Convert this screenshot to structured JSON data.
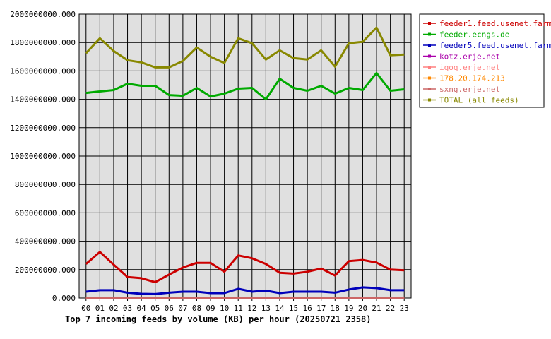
{
  "chart_data": {
    "type": "line",
    "title": "Top 7 incoming feeds by volume (KB) per hour (20250721 2358)",
    "categories": [
      "00",
      "01",
      "02",
      "03",
      "04",
      "05",
      "06",
      "07",
      "08",
      "09",
      "10",
      "11",
      "12",
      "13",
      "14",
      "15",
      "16",
      "17",
      "18",
      "19",
      "20",
      "21",
      "22",
      "23"
    ],
    "yticks": [
      "0.000",
      "200000000.000",
      "400000000.000",
      "600000000.000",
      "800000000.000",
      "1000000000.000",
      "1200000000.000",
      "1400000000.000",
      "1600000000.000",
      "1800000000.000",
      "2000000000.000"
    ],
    "ylim": [
      0,
      2000000000
    ],
    "grid": true,
    "legend_position": "top-right",
    "series": [
      {
        "name": "feeder1.feed.usenet.farm",
        "color": "#cc0000",
        "values": [
          240000000,
          325000000,
          235000000,
          148000000,
          140000000,
          112000000,
          165000000,
          215000000,
          248000000,
          248000000,
          185000000,
          300000000,
          280000000,
          240000000,
          178000000,
          172000000,
          185000000,
          208000000,
          158000000,
          260000000,
          268000000,
          250000000,
          200000000,
          195000000
        ]
      },
      {
        "name": "feeder.ecngs.de",
        "color": "#00aa00",
        "values": [
          1445000000,
          1455000000,
          1465000000,
          1510000000,
          1495000000,
          1495000000,
          1430000000,
          1425000000,
          1480000000,
          1420000000,
          1440000000,
          1475000000,
          1480000000,
          1400000000,
          1545000000,
          1480000000,
          1460000000,
          1495000000,
          1440000000,
          1480000000,
          1465000000,
          1585000000,
          1460000000,
          1470000000
        ]
      },
      {
        "name": "feeder5.feed.usenet.farm",
        "color": "#0000bb",
        "values": [
          45000000,
          55000000,
          55000000,
          38000000,
          30000000,
          28000000,
          38000000,
          45000000,
          45000000,
          35000000,
          35000000,
          65000000,
          45000000,
          52000000,
          35000000,
          45000000,
          45000000,
          45000000,
          38000000,
          60000000,
          75000000,
          70000000,
          55000000,
          55000000
        ]
      },
      {
        "name": "kotz.erje.net",
        "color": "#aa00aa",
        "values": [
          0,
          0,
          0,
          0,
          0,
          0,
          0,
          0,
          0,
          0,
          0,
          0,
          0,
          0,
          0,
          0,
          0,
          0,
          0,
          0,
          0,
          0,
          0,
          0
        ]
      },
      {
        "name": "iqoq.erje.net",
        "color": "#ff8080",
        "values": [
          0,
          0,
          0,
          0,
          0,
          0,
          0,
          0,
          0,
          0,
          0,
          0,
          0,
          0,
          0,
          0,
          0,
          0,
          0,
          0,
          0,
          0,
          0,
          0
        ]
      },
      {
        "name": "178.20.174.213",
        "color": "#ff8800",
        "values": [
          0,
          0,
          0,
          0,
          0,
          0,
          0,
          0,
          0,
          0,
          0,
          0,
          0,
          0,
          0,
          0,
          0,
          0,
          0,
          0,
          0,
          0,
          0,
          0
        ]
      },
      {
        "name": "sxng.erje.net",
        "color": "#cc6666",
        "values": [
          2000000,
          2000000,
          2000000,
          2000000,
          2000000,
          2000000,
          2000000,
          2000000,
          2000000,
          2000000,
          2000000,
          2000000,
          2000000,
          2000000,
          2000000,
          2000000,
          2000000,
          2000000,
          2000000,
          2000000,
          2000000,
          2000000,
          2000000,
          2000000
        ]
      },
      {
        "name": "TOTAL (all feeds)",
        "color": "#888800",
        "values": [
          1725000000,
          1830000000,
          1740000000,
          1675000000,
          1660000000,
          1625000000,
          1625000000,
          1670000000,
          1765000000,
          1700000000,
          1655000000,
          1830000000,
          1795000000,
          1680000000,
          1745000000,
          1690000000,
          1680000000,
          1745000000,
          1630000000,
          1795000000,
          1805000000,
          1905000000,
          1710000000,
          1715000000
        ]
      }
    ]
  },
  "colors": {
    "plot_bg": "#e0e0e0",
    "grid": "#000000",
    "axis": "#000000"
  }
}
